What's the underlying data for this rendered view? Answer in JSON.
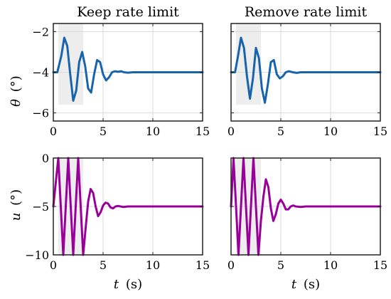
{
  "figure": {
    "col_titles": [
      "Keep rate limit",
      "Remove rate limit"
    ],
    "row_ylabels": [
      {
        "symbol": "θ",
        "unit": "(°)"
      },
      {
        "symbol": "u",
        "unit": "(°)"
      }
    ],
    "xlabel": {
      "symbol": "t",
      "unit": "(s)"
    }
  },
  "colors": {
    "theta": "#1864ab",
    "u": "#990099",
    "shade": "#ededed",
    "grid": "#dadada"
  },
  "chart_data": [
    {
      "type": "line",
      "title": "Keep rate limit",
      "ylabel": "θ (°)",
      "xlabel": "",
      "xlim": [
        0,
        15
      ],
      "ylim": [
        -6.4,
        -1.6
      ],
      "xticks": [
        0,
        5,
        10,
        15
      ],
      "yticks": [
        -6,
        -4,
        -2
      ],
      "grid": true,
      "shaded_region": {
        "x": [
          0.5,
          3.0
        ],
        "y": [
          -5.6,
          -1.6
        ]
      },
      "series": [
        {
          "color": "#1864ab",
          "x": [
            0,
            0.4,
            0.8,
            1.1,
            1.4,
            1.7,
            2.0,
            2.3,
            2.6,
            2.9,
            3.2,
            3.5,
            3.8,
            4.1,
            4.4,
            4.7,
            5.0,
            5.3,
            5.6,
            5.9,
            6.2,
            6.5,
            6.8,
            7.1,
            7.5,
            8.0,
            8.5,
            9.0,
            15
          ],
          "values": [
            -4.0,
            -4.0,
            -3.2,
            -2.3,
            -2.7,
            -4.1,
            -5.4,
            -4.9,
            -3.5,
            -3.0,
            -3.7,
            -4.8,
            -5.0,
            -4.1,
            -3.4,
            -3.5,
            -4.1,
            -4.4,
            -4.25,
            -4.0,
            -3.95,
            -3.98,
            -3.95,
            -4.0,
            -4.02,
            -4.0,
            -4.0,
            -4.0,
            -4.0
          ]
        }
      ]
    },
    {
      "type": "line",
      "title": "Remove rate limit",
      "ylabel": "",
      "xlabel": "",
      "xlim": [
        0,
        15
      ],
      "ylim": [
        -6.4,
        -1.6
      ],
      "xticks": [
        0,
        5,
        10,
        15
      ],
      "yticks": [
        -6,
        -4,
        -2
      ],
      "grid": true,
      "shaded_region": {
        "x": [
          0.5,
          3.0
        ],
        "y": [
          -5.6,
          -1.6
        ]
      },
      "series": [
        {
          "color": "#1864ab",
          "x": [
            0,
            0.4,
            0.7,
            1.0,
            1.3,
            1.6,
            1.9,
            2.2,
            2.5,
            2.8,
            3.1,
            3.4,
            3.7,
            4.0,
            4.3,
            4.6,
            4.9,
            5.2,
            5.5,
            5.8,
            6.2,
            6.6,
            7.0,
            7.5,
            8.0,
            8.5,
            9.0,
            15
          ],
          "values": [
            -4.0,
            -4.0,
            -3.2,
            -2.3,
            -2.8,
            -4.2,
            -5.3,
            -4.3,
            -2.8,
            -3.3,
            -4.8,
            -5.5,
            -4.6,
            -3.5,
            -3.4,
            -4.1,
            -4.3,
            -4.2,
            -4.0,
            -3.95,
            -4.0,
            -4.03,
            -4.0,
            -4.0,
            -4.0,
            -4.0,
            -4.0,
            -4.0
          ]
        }
      ]
    },
    {
      "type": "line",
      "title": "",
      "ylabel": "u (°)",
      "xlabel": "t (s)",
      "xlim": [
        0,
        15
      ],
      "ylim": [
        -10,
        0
      ],
      "xticks": [
        0,
        5,
        10,
        15
      ],
      "yticks": [
        -10,
        -5,
        0
      ],
      "grid": true,
      "shaded_region": {
        "x": [
          0.5,
          3.0
        ],
        "y": [
          -10,
          0
        ]
      },
      "series": [
        {
          "color": "#990099",
          "x": [
            0,
            0.5,
            0.75,
            1.0,
            1.25,
            1.5,
            1.75,
            2.0,
            2.25,
            2.5,
            2.75,
            3.0,
            3.25,
            3.5,
            3.75,
            4.0,
            4.25,
            4.5,
            4.75,
            5.0,
            5.25,
            5.5,
            5.75,
            6.0,
            6.25,
            6.5,
            6.75,
            7.0,
            7.5,
            8.0,
            15
          ],
          "values": [
            -5.0,
            0.0,
            -5.0,
            -10.0,
            -5.0,
            0.0,
            -5.0,
            -10.0,
            -5.0,
            0.0,
            -5.0,
            -10.0,
            -7.2,
            -4.5,
            -3.2,
            -3.6,
            -5.0,
            -6.0,
            -5.6,
            -4.9,
            -4.6,
            -4.7,
            -5.1,
            -5.2,
            -5.0,
            -4.95,
            -5.0,
            -5.05,
            -5.0,
            -5.0,
            -5.0
          ]
        }
      ]
    },
    {
      "type": "line",
      "title": "",
      "ylabel": "",
      "xlabel": "t (s)",
      "xlim": [
        0,
        15
      ],
      "ylim": [
        -10,
        0
      ],
      "xticks": [
        0,
        5,
        10,
        15
      ],
      "yticks": [
        -10,
        -5,
        0
      ],
      "grid": true,
      "shaded_region": {
        "x": [
          0.5,
          3.0
        ],
        "y": [
          -10,
          0
        ]
      },
      "series": [
        {
          "color": "#990099",
          "x": [
            0,
            0.25,
            0.5,
            0.75,
            1.0,
            1.25,
            1.5,
            1.75,
            2.0,
            2.25,
            2.5,
            2.75,
            3.0,
            3.25,
            3.5,
            3.75,
            4.0,
            4.25,
            4.5,
            4.75,
            5.0,
            5.25,
            5.5,
            5.75,
            6.0,
            6.25,
            6.5,
            7.0,
            7.5,
            8.0,
            15
          ],
          "values": [
            -5.0,
            0.0,
            -5.0,
            -10.0,
            -5.0,
            0.0,
            -5.0,
            -10.0,
            -5.0,
            0.0,
            -5.0,
            -10.0,
            -6.5,
            -4.0,
            -2.2,
            -3.0,
            -5.2,
            -6.5,
            -5.8,
            -4.7,
            -4.3,
            -4.7,
            -5.3,
            -5.3,
            -5.0,
            -4.9,
            -5.0,
            -5.05,
            -5.0,
            -5.0,
            -5.0
          ]
        }
      ]
    }
  ]
}
